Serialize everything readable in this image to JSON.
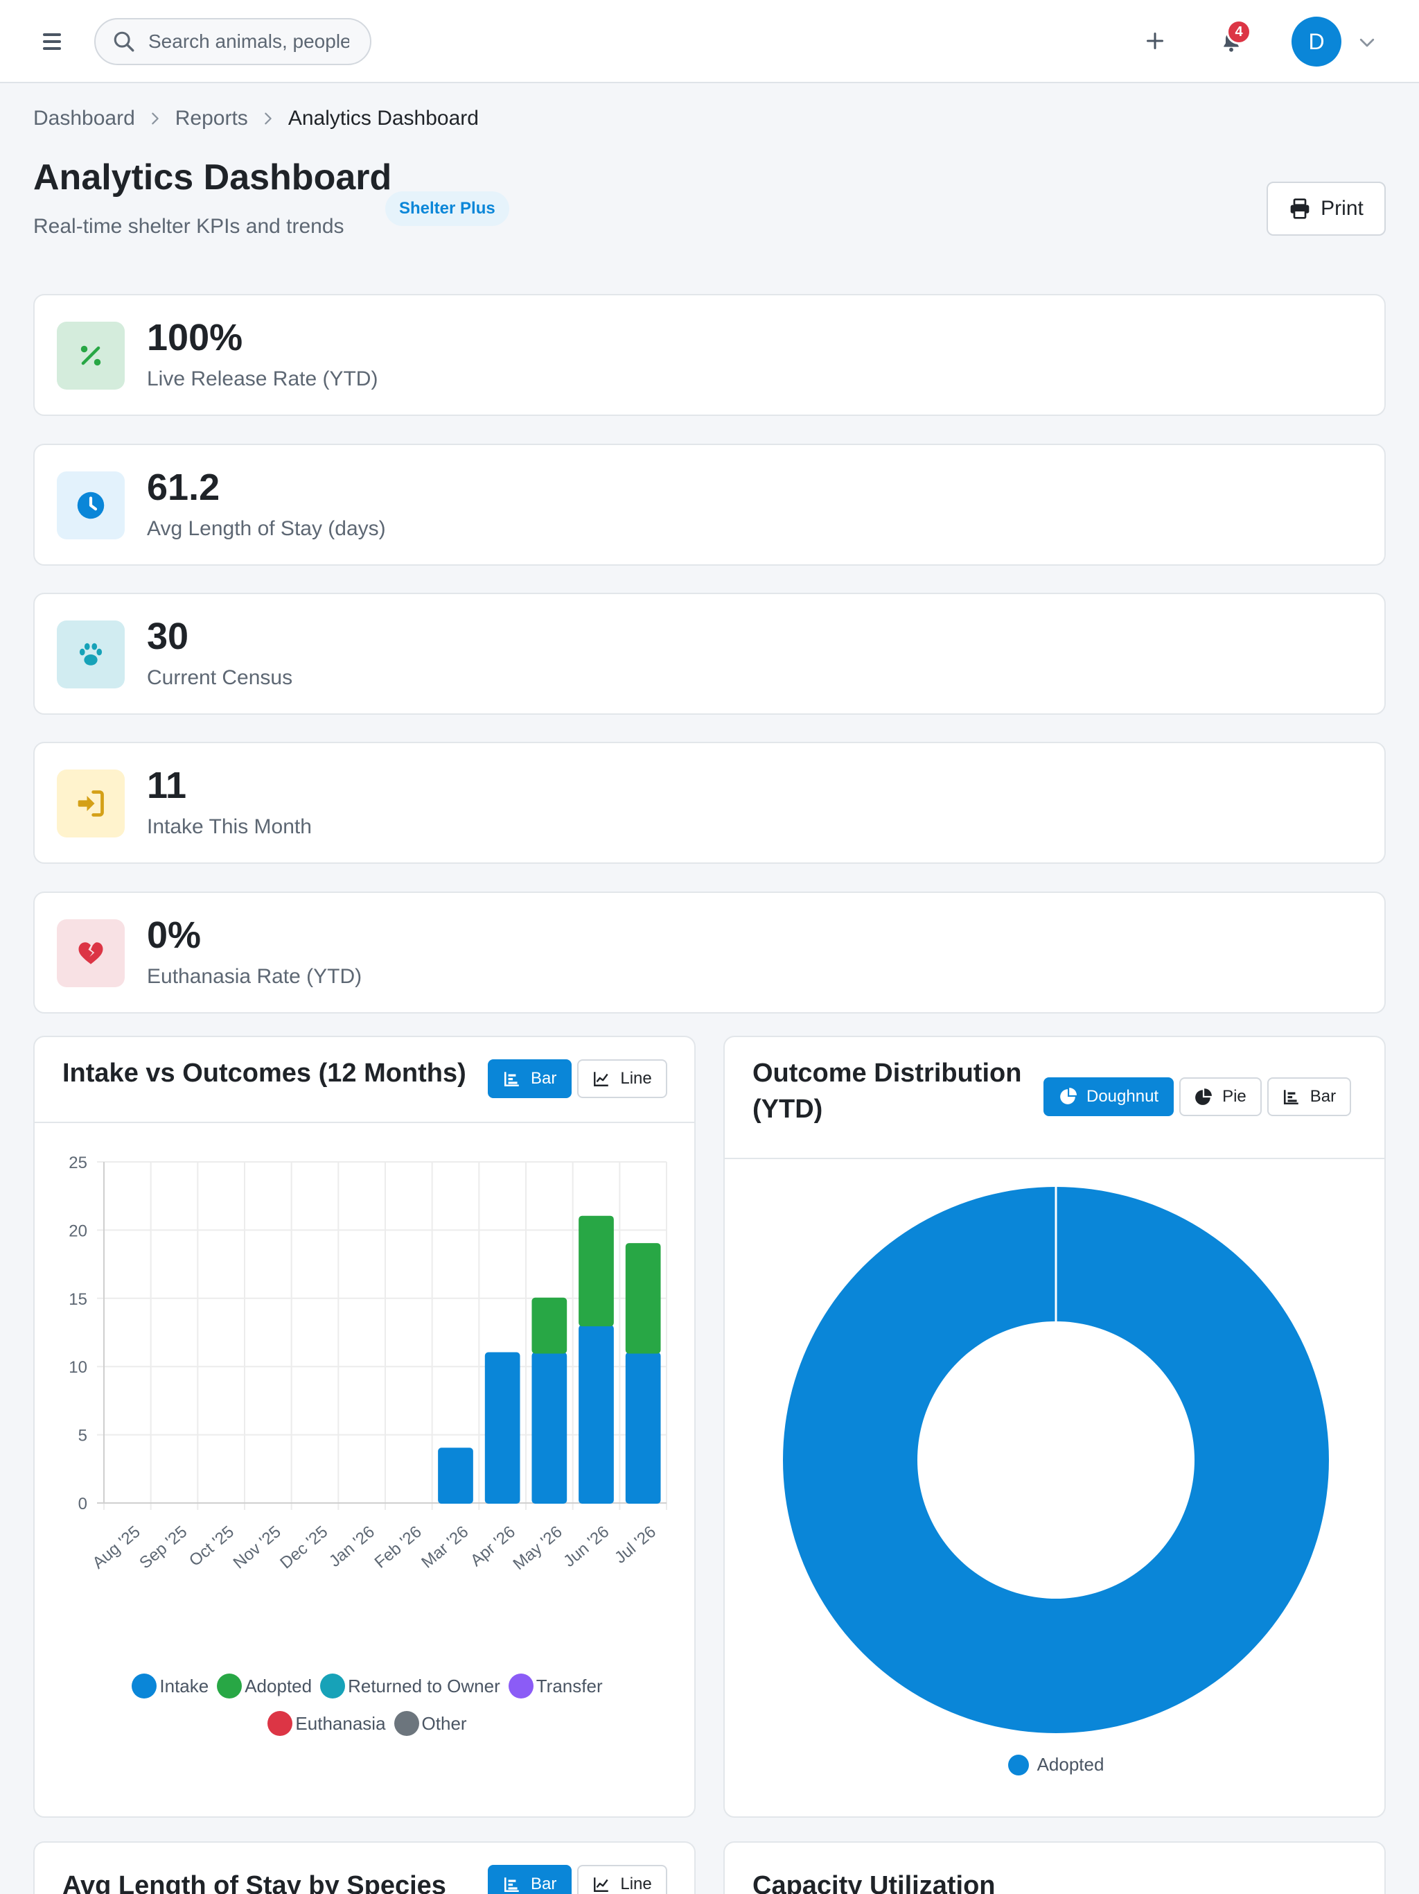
{
  "header": {
    "search_placeholder": "Search animals, people",
    "notification_count": "4",
    "avatar_initial": "D"
  },
  "breadcrumb": [
    "Dashboard",
    "Reports",
    "Analytics Dashboard"
  ],
  "page": {
    "title": "Analytics Dashboard",
    "subtitle": "Real-time shelter KPIs and trends",
    "plan_badge": "Shelter Plus",
    "print_label": "Print"
  },
  "kpis": [
    {
      "value": "100%",
      "label": "Live Release Rate (YTD)",
      "icon": "percent-icon",
      "color": "#28a745",
      "bg": "#d4ecdc"
    },
    {
      "value": "61.2",
      "label": "Avg Length of Stay (days)",
      "icon": "clock-icon",
      "color": "#0a86d8",
      "bg": "#e3f2fc"
    },
    {
      "value": "30",
      "label": "Current Census",
      "icon": "paw-icon",
      "color": "#17a2b8",
      "bg": "#d1ecf1"
    },
    {
      "value": "11",
      "label": "Intake This Month",
      "icon": "sign-in-icon",
      "color": "#d4a017",
      "bg": "#fff3cd"
    },
    {
      "value": "0%",
      "label": "Euthanasia Rate (YTD)",
      "icon": "broken-heart-icon",
      "color": "#dc3545",
      "bg": "#f8e1e4"
    }
  ],
  "intake_card": {
    "title": "Intake vs Outcomes (12 Months)",
    "buttons": [
      "Bar",
      "Line"
    ]
  },
  "outcome_card": {
    "title": "Outcome Distribution (YTD)",
    "buttons": [
      "Doughnut",
      "Pie",
      "Bar"
    ]
  },
  "los_card": {
    "title": "Avg Length of Stay by Species",
    "buttons": [
      "Bar",
      "Line"
    ]
  },
  "capacity_card": {
    "title": "Capacity Utilization"
  },
  "chart_data": [
    {
      "type": "bar",
      "stacked": true,
      "title": "Intake vs Outcomes (12 Months)",
      "categories": [
        "Aug '25",
        "Sep '25",
        "Oct '25",
        "Nov '25",
        "Dec '25",
        "Jan '26",
        "Feb '26",
        "Mar '26",
        "Apr '26",
        "May '26",
        "Jun '26",
        "Jul '26"
      ],
      "series": [
        {
          "name": "Intake",
          "color": "#0a86d8",
          "values": [
            0,
            0,
            0,
            0,
            0,
            0,
            0,
            4,
            11,
            11,
            13,
            11
          ]
        },
        {
          "name": "Adopted",
          "color": "#28a745",
          "values": [
            0,
            0,
            0,
            0,
            0,
            0,
            0,
            0,
            0,
            4,
            8,
            8
          ]
        },
        {
          "name": "Returned to Owner",
          "color": "#17a2b8",
          "values": [
            0,
            0,
            0,
            0,
            0,
            0,
            0,
            0,
            0,
            0,
            0,
            0
          ]
        },
        {
          "name": "Transfer",
          "color": "#8b5cf6",
          "values": [
            0,
            0,
            0,
            0,
            0,
            0,
            0,
            0,
            0,
            0,
            0,
            0
          ]
        },
        {
          "name": "Euthanasia",
          "color": "#dc3545",
          "values": [
            0,
            0,
            0,
            0,
            0,
            0,
            0,
            0,
            0,
            0,
            0,
            0
          ]
        },
        {
          "name": "Other",
          "color": "#6c757d",
          "values": [
            0,
            0,
            0,
            0,
            0,
            0,
            0,
            0,
            0,
            0,
            0,
            0
          ]
        }
      ],
      "ylim": [
        0,
        25
      ],
      "yticks": [
        0,
        5,
        10,
        15,
        20,
        25
      ],
      "grid": true,
      "legend": "bottom"
    },
    {
      "type": "doughnut",
      "title": "Outcome Distribution (YTD)",
      "slices": [
        {
          "name": "Adopted",
          "value": 100,
          "color": "#0a86d8"
        }
      ],
      "legend": "bottom"
    }
  ]
}
